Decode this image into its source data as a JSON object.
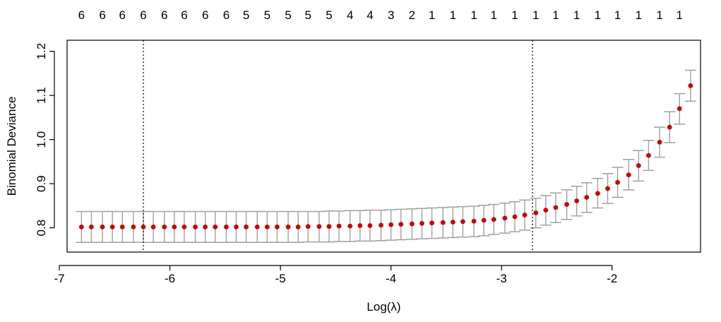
{
  "chart_data": {
    "type": "scatter",
    "title": "",
    "xlabel": "Log(λ)",
    "ylabel": "Binomial Deviance",
    "xlim": [
      -6.93,
      -1.2
    ],
    "ylim": [
      0.745,
      1.225
    ],
    "x_ticks": [
      -7,
      -6,
      -5,
      -4,
      -3,
      -2
    ],
    "y_ticks": [
      0.8,
      0.9,
      1.0,
      1.1,
      1.2
    ],
    "y_tick_labels": [
      "0.8",
      "0.9",
      "1.0",
      "1.1",
      "1.2"
    ],
    "vlines": [
      -6.24,
      -2.72
    ],
    "point_color": "#cc0000",
    "errorbar_color": "#a0a0a0",
    "series": [
      {
        "x": [
          -6.8,
          -6.71,
          -6.61,
          -6.52,
          -6.43,
          -6.33,
          -6.24,
          -6.15,
          -6.05,
          -5.96,
          -5.87,
          -5.77,
          -5.68,
          -5.59,
          -5.49,
          -5.4,
          -5.31,
          -5.21,
          -5.12,
          -5.03,
          -4.93,
          -4.84,
          -4.75,
          -4.65,
          -4.56,
          -4.47,
          -4.37,
          -4.28,
          -4.19,
          -4.09,
          -4.0,
          -3.91,
          -3.81,
          -3.72,
          -3.63,
          -3.53,
          -3.44,
          -3.35,
          -3.25,
          -3.16,
          -3.07,
          -2.97,
          -2.88,
          -2.79,
          -2.69,
          -2.6,
          -2.51,
          -2.41,
          -2.32,
          -2.23,
          -2.13,
          -2.04,
          -1.95,
          -1.85,
          -1.76,
          -1.67,
          -1.57,
          -1.48,
          -1.39,
          -1.29
        ],
        "y": [
          0.802,
          0.802,
          0.802,
          0.802,
          0.802,
          0.802,
          0.802,
          0.802,
          0.802,
          0.802,
          0.802,
          0.802,
          0.802,
          0.802,
          0.802,
          0.802,
          0.802,
          0.802,
          0.802,
          0.802,
          0.802,
          0.802,
          0.803,
          0.803,
          0.803,
          0.804,
          0.804,
          0.805,
          0.805,
          0.806,
          0.807,
          0.808,
          0.809,
          0.81,
          0.811,
          0.812,
          0.813,
          0.814,
          0.815,
          0.817,
          0.819,
          0.822,
          0.825,
          0.829,
          0.834,
          0.84,
          0.846,
          0.853,
          0.861,
          0.869,
          0.878,
          0.889,
          0.903,
          0.92,
          0.941,
          0.964,
          0.994,
          1.028,
          1.07,
          1.122
        ],
        "y_upper": [
          0.837,
          0.837,
          0.837,
          0.837,
          0.837,
          0.837,
          0.837,
          0.837,
          0.837,
          0.837,
          0.837,
          0.837,
          0.837,
          0.837,
          0.837,
          0.837,
          0.837,
          0.837,
          0.837,
          0.837,
          0.837,
          0.837,
          0.837,
          0.837,
          0.838,
          0.838,
          0.839,
          0.839,
          0.84,
          0.84,
          0.841,
          0.842,
          0.843,
          0.844,
          0.845,
          0.846,
          0.847,
          0.848,
          0.849,
          0.851,
          0.853,
          0.856,
          0.859,
          0.863,
          0.867,
          0.873,
          0.879,
          0.886,
          0.894,
          0.902,
          0.912,
          0.923,
          0.937,
          0.955,
          0.975,
          0.998,
          1.028,
          1.063,
          1.104,
          1.157
        ],
        "y_lower": [
          0.767,
          0.767,
          0.767,
          0.767,
          0.767,
          0.767,
          0.767,
          0.767,
          0.767,
          0.767,
          0.767,
          0.767,
          0.767,
          0.767,
          0.767,
          0.767,
          0.767,
          0.767,
          0.767,
          0.767,
          0.767,
          0.767,
          0.768,
          0.768,
          0.768,
          0.769,
          0.769,
          0.77,
          0.77,
          0.771,
          0.772,
          0.773,
          0.774,
          0.775,
          0.776,
          0.777,
          0.778,
          0.779,
          0.78,
          0.782,
          0.785,
          0.788,
          0.791,
          0.795,
          0.8,
          0.806,
          0.812,
          0.819,
          0.827,
          0.835,
          0.845,
          0.855,
          0.869,
          0.886,
          0.906,
          0.93,
          0.96,
          0.993,
          1.035,
          1.087
        ]
      }
    ],
    "top_axis": {
      "x": [
        -6.8,
        -6.61,
        -6.43,
        -6.24,
        -6.05,
        -5.87,
        -5.68,
        -5.49,
        -5.31,
        -5.12,
        -4.93,
        -4.75,
        -4.56,
        -4.37,
        -4.19,
        -4.0,
        -3.81,
        -3.63,
        -3.44,
        -3.25,
        -3.07,
        -2.88,
        -2.69,
        -2.51,
        -2.32,
        -2.13,
        -1.95,
        -1.76,
        -1.57,
        -1.39
      ],
      "labels": [
        "6",
        "6",
        "6",
        "6",
        "6",
        "6",
        "6",
        "6",
        "5",
        "5",
        "5",
        "5",
        "5",
        "4",
        "4",
        "3",
        "2",
        "1",
        "1",
        "1",
        "1",
        "1",
        "1",
        "1",
        "1",
        "1",
        "1",
        "1",
        "1",
        "1"
      ]
    }
  }
}
